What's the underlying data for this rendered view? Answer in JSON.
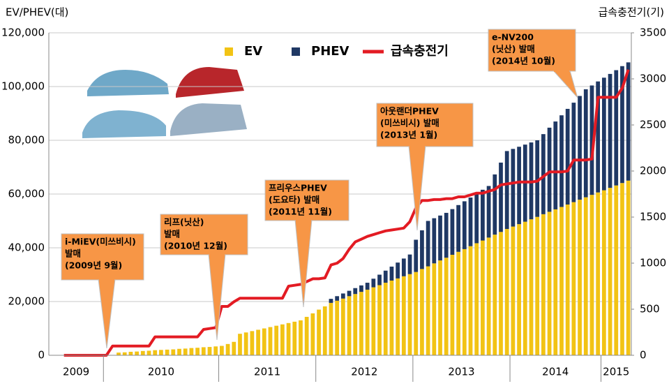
{
  "chart_data": {
    "type": "bar",
    "stacked": true,
    "y_axis_label": "EV/PHEV(대)",
    "y2_axis_label": "급속충전기(기)",
    "categories": [
      null,
      null,
      null,
      null,
      null,
      null,
      null,
      null,
      null,
      null,
      null,
      null,
      null,
      null,
      null,
      null,
      null,
      null,
      null,
      null,
      null,
      null,
      null,
      null,
      null,
      null,
      null,
      null,
      null,
      null,
      null,
      null,
      null,
      null,
      null,
      null,
      null,
      null,
      null,
      null,
      null,
      null,
      null,
      null,
      null,
      null,
      null,
      null,
      null,
      null,
      null,
      null,
      null,
      null,
      null,
      null,
      null,
      null,
      null,
      null,
      null,
      null,
      null,
      null,
      null,
      null,
      null,
      null,
      null,
      null,
      null,
      null,
      null,
      null,
      null,
      null,
      null,
      null,
      null,
      null,
      null,
      null,
      null,
      null,
      null,
      null,
      null,
      null,
      null,
      null,
      null,
      null,
      null,
      null,
      null,
      null
    ],
    "x_groups": [
      {
        "label": "2009",
        "from": 0,
        "to": 8
      },
      {
        "label": "2010",
        "from": 9,
        "to": 27
      },
      {
        "label": "2011",
        "from": 28,
        "to": 43
      },
      {
        "label": "2012",
        "from": 44,
        "to": 59
      },
      {
        "label": "2013",
        "from": 60,
        "to": 75
      },
      {
        "label": "2014",
        "from": 76,
        "to": 90
      },
      {
        "label": "2015",
        "from": 91,
        "to": 95
      }
    ],
    "series": [
      {
        "name": "EV",
        "color": "#f2c314",
        "values": [
          null,
          null,
          null,
          null,
          null,
          null,
          null,
          null,
          null,
          null,
          null,
          1000,
          1100,
          1300,
          1400,
          1600,
          1700,
          1900,
          2000,
          2100,
          2200,
          2400,
          2500,
          2700,
          2800,
          3000,
          3100,
          3300,
          3500,
          4200,
          5000,
          8000,
          8500,
          9000,
          9500,
          10000,
          10500,
          11000,
          11500,
          12000,
          12500,
          13000,
          14300,
          15600,
          17000,
          18200,
          19500,
          20300,
          21100,
          22000,
          22800,
          23600,
          24400,
          25300,
          26100,
          27000,
          27800,
          28600,
          29400,
          30200,
          31000,
          32100,
          33100,
          34200,
          35300,
          36300,
          37400,
          38500,
          39500,
          40600,
          41700,
          42700,
          43800,
          44900,
          45900,
          47000,
          47900,
          48800,
          49700,
          50600,
          51500,
          52500,
          53400,
          54300,
          55200,
          56100,
          57000,
          57900,
          58800,
          59700,
          60600,
          61400,
          62300,
          63200,
          64100,
          65000
        ]
      },
      {
        "name": "PHEV",
        "color": "#1f3864",
        "values": [
          null,
          null,
          null,
          null,
          null,
          null,
          null,
          null,
          null,
          null,
          null,
          null,
          null,
          null,
          null,
          null,
          null,
          null,
          null,
          null,
          null,
          null,
          null,
          null,
          null,
          null,
          null,
          null,
          null,
          null,
          null,
          null,
          null,
          null,
          null,
          null,
          null,
          null,
          null,
          null,
          null,
          null,
          null,
          null,
          null,
          null,
          1500,
          1700,
          1900,
          2000,
          2200,
          2400,
          2600,
          3200,
          3900,
          4500,
          5200,
          5900,
          6600,
          7300,
          12000,
          14400,
          16900,
          16800,
          16700,
          16700,
          17000,
          17400,
          17800,
          18100,
          18400,
          18900,
          19200,
          22400,
          25800,
          29000,
          28900,
          28800,
          28700,
          28600,
          28500,
          29800,
          31300,
          32700,
          34100,
          35600,
          37000,
          38600,
          40200,
          40700,
          41300,
          41900,
          42400,
          42900,
          43500,
          44000
        ]
      },
      {
        "name": "급속충전기",
        "color": "#e31b23",
        "type": "line",
        "axis": "y2",
        "values": [
          null,
          null,
          0,
          0,
          0,
          0,
          0,
          0,
          0,
          0,
          100,
          100,
          100,
          100,
          100,
          100,
          100,
          200,
          200,
          200,
          200,
          200,
          200,
          200,
          200,
          280,
          290,
          300,
          530,
          530,
          580,
          620,
          620,
          620,
          620,
          620,
          620,
          620,
          620,
          750,
          760,
          770,
          800,
          830,
          830,
          840,
          980,
          1000,
          1050,
          1150,
          1230,
          1260,
          1290,
          1310,
          1330,
          1350,
          1360,
          1370,
          1380,
          1450,
          1600,
          1680,
          1680,
          1690,
          1690,
          1700,
          1700,
          1720,
          1720,
          1740,
          1760,
          1760,
          1780,
          1800,
          1850,
          1860,
          1870,
          1880,
          1880,
          1880,
          1890,
          1940,
          1990,
          1990,
          1990,
          2000,
          2120,
          2120,
          2120,
          2130,
          2800,
          2800,
          2800,
          2800,
          2900,
          3100
        ]
      }
    ],
    "ylim": [
      0,
      120000
    ],
    "yticks": [
      0,
      {
        "value": 20000,
        "label": "20,000"
      },
      {
        "value": 40000,
        "label": "40,000"
      },
      {
        "value": 60000,
        "label": "60,000"
      },
      {
        "value": 80000,
        "label": "80,000"
      },
      {
        "value": 100000,
        "label": "100,000"
      },
      {
        "value": 120000,
        "label": "120,000"
      }
    ],
    "y2lim": [
      0,
      3500
    ],
    "y2ticks": [
      0,
      500,
      1000,
      1500,
      2000,
      2500,
      3000,
      3500
    ],
    "grid": true,
    "annotations": [
      {
        "lines": [
          "i-MiEV(미쓰비시)",
          "발매",
          "(2009년 9월)"
        ]
      },
      {
        "lines": [
          "리프(닛산)",
          "발매",
          "(2010년 12월)"
        ]
      },
      {
        "lines": [
          "프리우스PHEV",
          "(도요타) 발매",
          "(2011년 11월)"
        ]
      },
      {
        "lines": [
          "아웃랜더PHEV",
          "(미쓰비시) 발매",
          "(2013년 1월)"
        ]
      },
      {
        "lines": [
          "e-NV200",
          "(닛산) 발매",
          "(2014년 10월)"
        ]
      }
    ]
  }
}
